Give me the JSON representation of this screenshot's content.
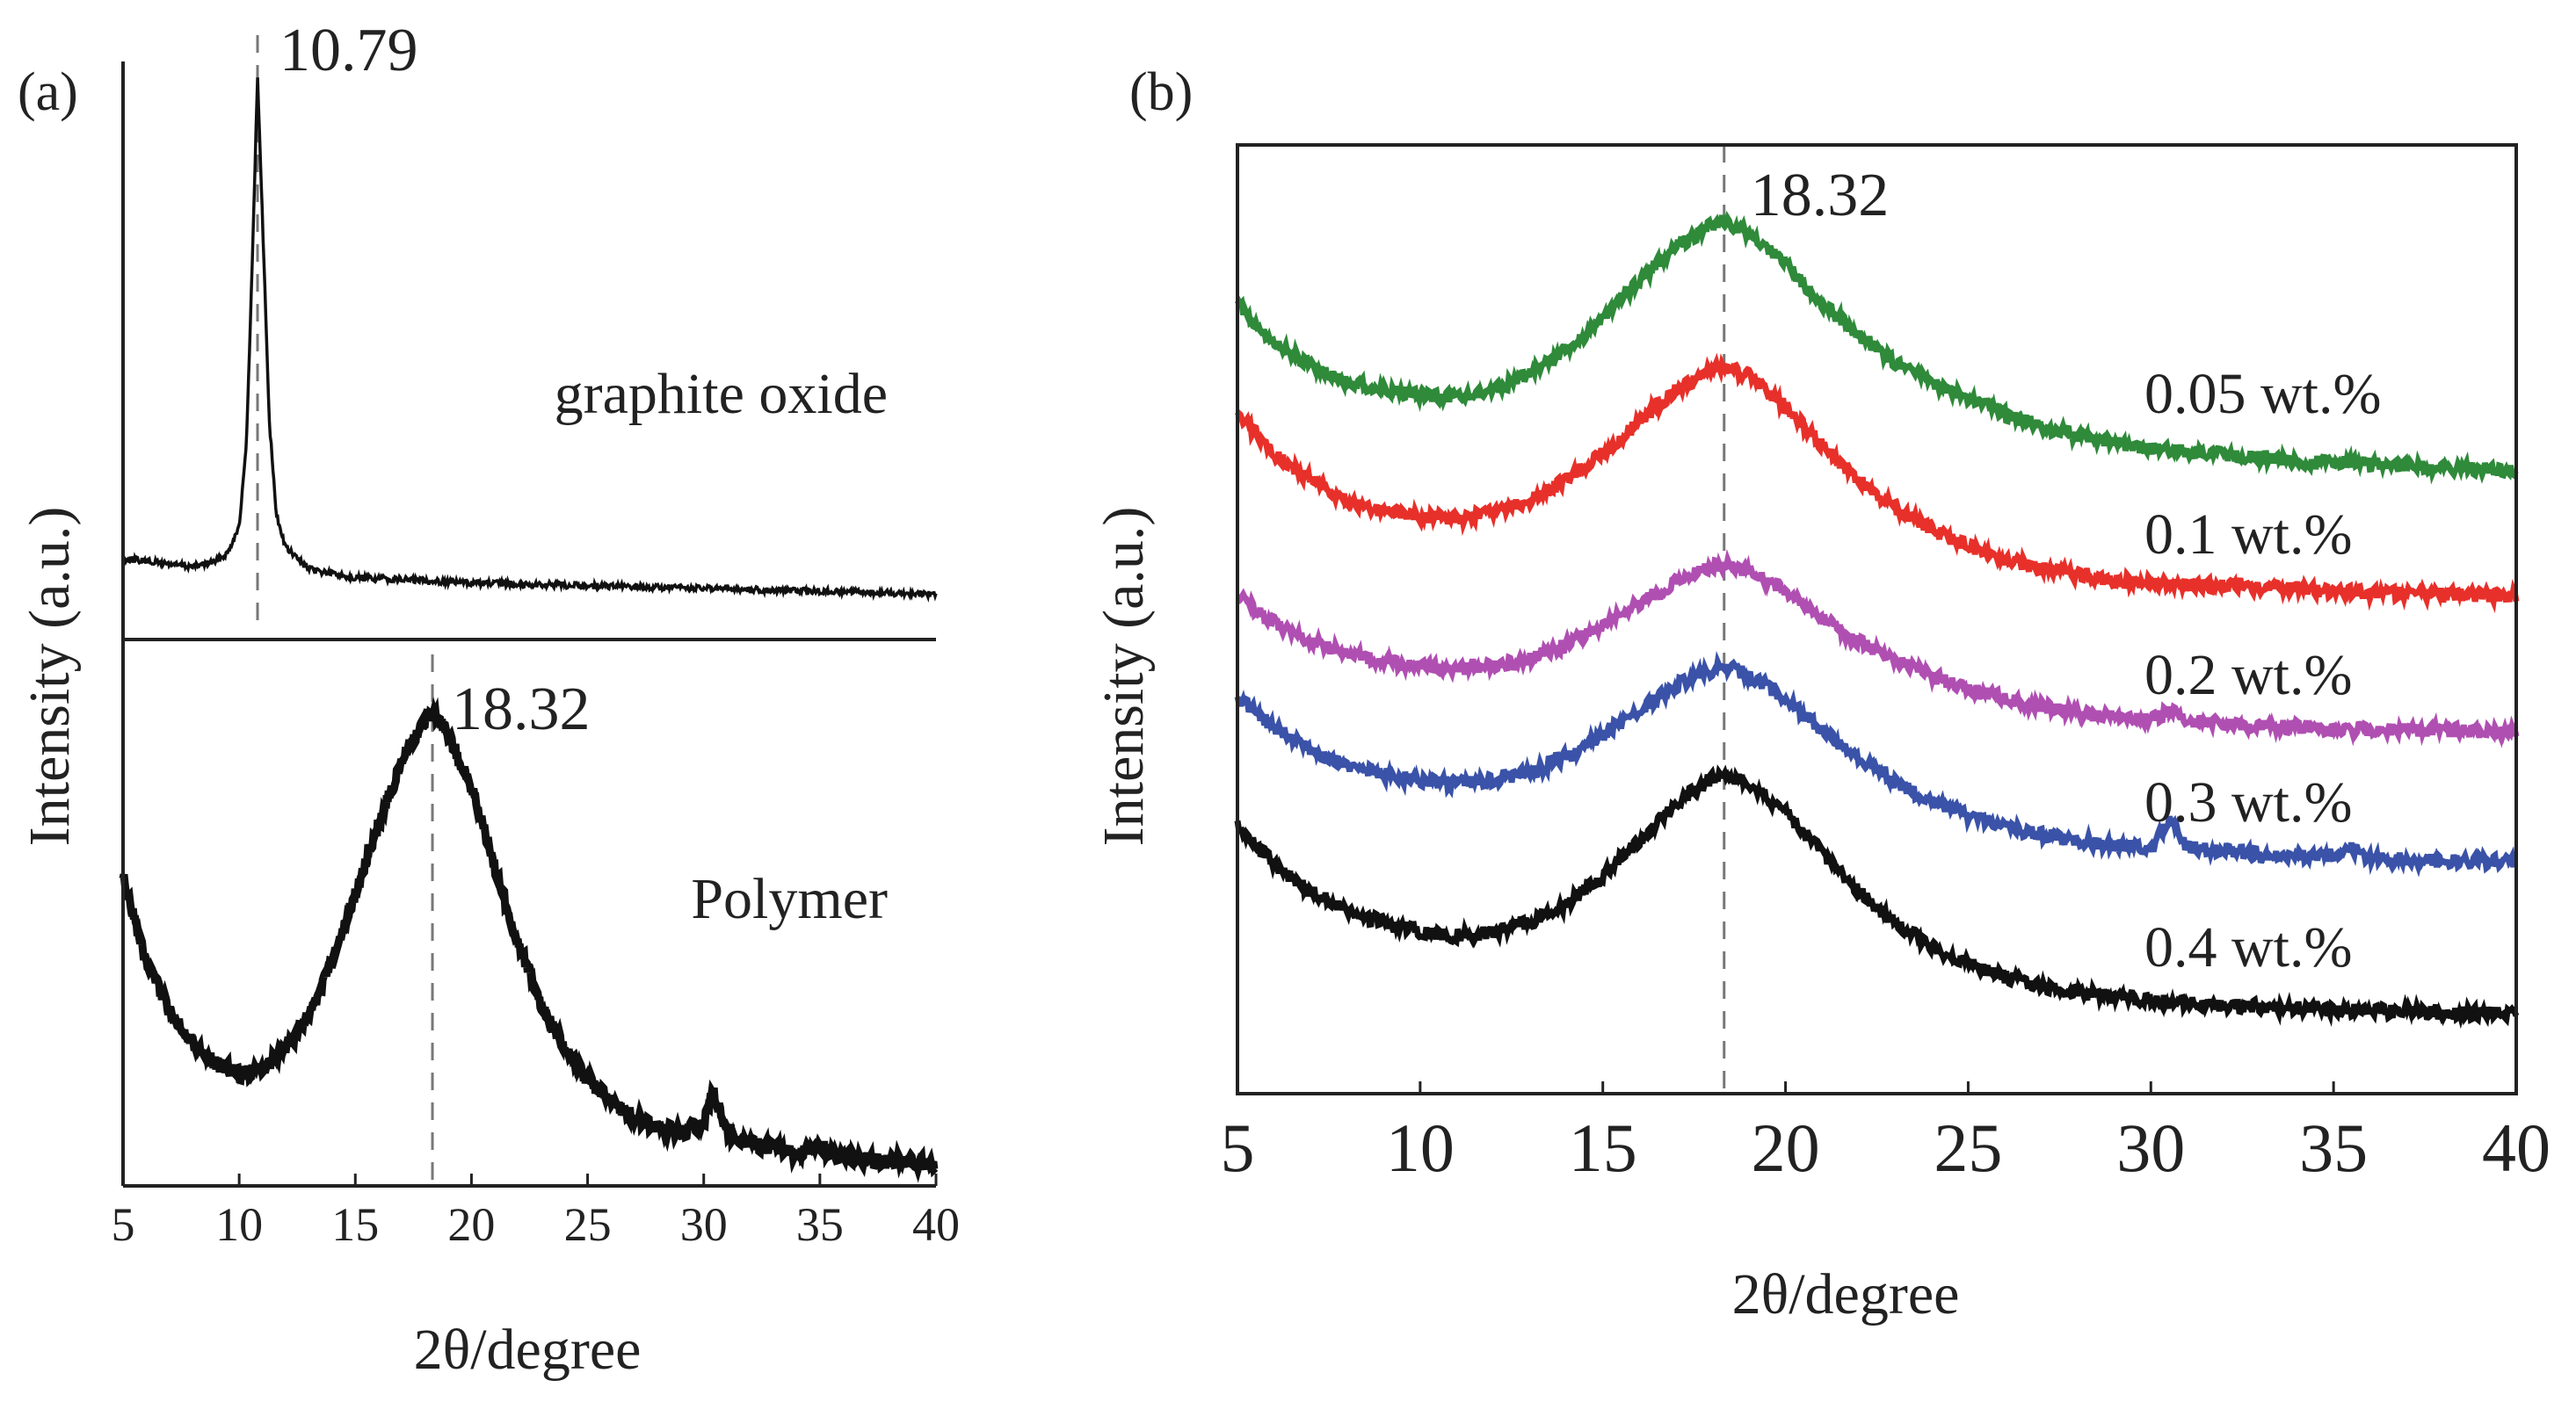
{
  "chart_data": [
    {
      "panel": "(a)",
      "type": "line",
      "xlabel": "2θ/degree",
      "ylabel": "Intensity (a.u.)",
      "xlim": [
        5,
        40
      ],
      "xticks": [
        5,
        10,
        15,
        20,
        25,
        30,
        35,
        40
      ],
      "yticks": false,
      "subplots": [
        {
          "label": "graphite oxide",
          "color": "#111111",
          "ylim": [
            0,
            1.0
          ],
          "peak_annotation": {
            "x": 10.79,
            "text": "10.79"
          },
          "x": [
            5,
            6,
            7,
            8,
            9,
            9.5,
            10,
            10.3,
            10.5,
            10.79,
            11.1,
            11.3,
            11.6,
            12,
            12.5,
            13,
            15,
            18,
            20,
            25,
            30,
            35,
            40
          ],
          "values": [
            0.1,
            0.095,
            0.09,
            0.085,
            0.095,
            0.11,
            0.16,
            0.3,
            0.55,
            0.98,
            0.6,
            0.35,
            0.18,
            0.12,
            0.1,
            0.08,
            0.065,
            0.06,
            0.055,
            0.05,
            0.045,
            0.04,
            0.035
          ]
        },
        {
          "label": "Polymer",
          "color": "#111111",
          "ylim": [
            0,
            1.0
          ],
          "peak_annotation": {
            "x": 18.32,
            "text": "18.32"
          },
          "x": [
            5,
            6,
            7,
            8,
            9,
            10,
            11,
            12,
            13,
            14,
            15,
            16,
            17,
            18,
            18.32,
            19,
            20,
            21,
            22,
            23,
            24,
            25,
            26,
            27,
            28,
            29,
            30,
            30.4,
            31,
            32,
            33,
            34,
            35,
            36,
            37,
            38,
            39,
            40
          ],
          "values": [
            0.58,
            0.42,
            0.33,
            0.27,
            0.23,
            0.21,
            0.22,
            0.26,
            0.32,
            0.42,
            0.55,
            0.68,
            0.8,
            0.88,
            0.89,
            0.85,
            0.75,
            0.6,
            0.46,
            0.34,
            0.26,
            0.2,
            0.16,
            0.13,
            0.11,
            0.1,
            0.12,
            0.18,
            0.1,
            0.08,
            0.07,
            0.06,
            0.075,
            0.055,
            0.05,
            0.045,
            0.045,
            0.04
          ]
        }
      ]
    },
    {
      "panel": "(b)",
      "type": "line",
      "xlabel": "2θ/degree",
      "ylabel": "Intensity (a.u.)",
      "xlim": [
        5,
        40
      ],
      "xticks": [
        5,
        10,
        15,
        20,
        25,
        30,
        35,
        40
      ],
      "yticks": false,
      "ylim": [
        0,
        6
      ],
      "peak_annotation": {
        "x": 18.32,
        "text": "18.32"
      },
      "x": [
        5,
        6,
        7,
        8,
        9,
        10,
        11,
        12,
        13,
        14,
        15,
        16,
        17,
        18,
        18.32,
        19,
        20,
        21,
        22,
        23,
        24,
        25,
        26,
        27,
        28,
        29,
        30,
        30.5,
        31,
        32,
        33,
        34,
        35,
        35.4,
        36,
        37,
        38,
        39,
        40
      ],
      "series": [
        {
          "name": "0.05 wt.%",
          "color": "#2f8a3a",
          "values": [
            5.0,
            4.75,
            4.6,
            4.5,
            4.45,
            4.42,
            4.4,
            4.45,
            4.55,
            4.7,
            4.9,
            5.15,
            5.35,
            5.5,
            5.52,
            5.45,
            5.25,
            5.0,
            4.8,
            4.62,
            4.5,
            4.4,
            4.3,
            4.22,
            4.16,
            4.12,
            4.08,
            4.07,
            4.06,
            4.04,
            4.02,
            4.0,
            3.99,
            3.99,
            3.98,
            3.97,
            3.96,
            3.95,
            3.95
          ]
        },
        {
          "name": "0.1 wt.%",
          "color": "#e8302a",
          "values": [
            4.3,
            4.05,
            3.88,
            3.75,
            3.68,
            3.65,
            3.64,
            3.67,
            3.75,
            3.88,
            4.05,
            4.25,
            4.45,
            4.58,
            4.6,
            4.54,
            4.35,
            4.1,
            3.88,
            3.7,
            3.57,
            3.46,
            3.38,
            3.32,
            3.28,
            3.25,
            3.23,
            3.22,
            3.22,
            3.21,
            3.2,
            3.19,
            3.18,
            3.18,
            3.17,
            3.16,
            3.16,
            3.15,
            3.15
          ]
        },
        {
          "name": "0.2 wt.%",
          "color": "#b04fb2",
          "values": [
            3.15,
            2.98,
            2.86,
            2.78,
            2.73,
            2.7,
            2.69,
            2.7,
            2.75,
            2.84,
            2.96,
            3.1,
            3.24,
            3.33,
            3.35,
            3.3,
            3.18,
            3.0,
            2.86,
            2.74,
            2.64,
            2.56,
            2.5,
            2.45,
            2.41,
            2.38,
            2.36,
            2.42,
            2.36,
            2.34,
            2.33,
            2.32,
            2.31,
            2.31,
            2.3,
            2.3,
            2.3,
            2.29,
            2.29
          ]
        },
        {
          "name": "0.3 wt.%",
          "color": "#3a52a8",
          "values": [
            2.5,
            2.32,
            2.18,
            2.08,
            2.02,
            1.98,
            1.96,
            1.98,
            2.03,
            2.13,
            2.27,
            2.43,
            2.58,
            2.68,
            2.7,
            2.65,
            2.5,
            2.3,
            2.12,
            1.97,
            1.85,
            1.76,
            1.69,
            1.64,
            1.6,
            1.57,
            1.56,
            1.72,
            1.56,
            1.53,
            1.51,
            1.5,
            1.51,
            1.56,
            1.49,
            1.48,
            1.47,
            1.47,
            1.46
          ]
        },
        {
          "name": "0.4 wt.%",
          "color": "#111111",
          "values": [
            1.7,
            1.45,
            1.28,
            1.16,
            1.08,
            1.02,
            1.0,
            1.02,
            1.08,
            1.2,
            1.38,
            1.6,
            1.83,
            2.0,
            2.02,
            1.96,
            1.78,
            1.52,
            1.28,
            1.08,
            0.93,
            0.82,
            0.74,
            0.68,
            0.64,
            0.61,
            0.59,
            0.58,
            0.57,
            0.56,
            0.55,
            0.54,
            0.53,
            0.53,
            0.52,
            0.52,
            0.51,
            0.51,
            0.5
          ]
        }
      ]
    }
  ]
}
